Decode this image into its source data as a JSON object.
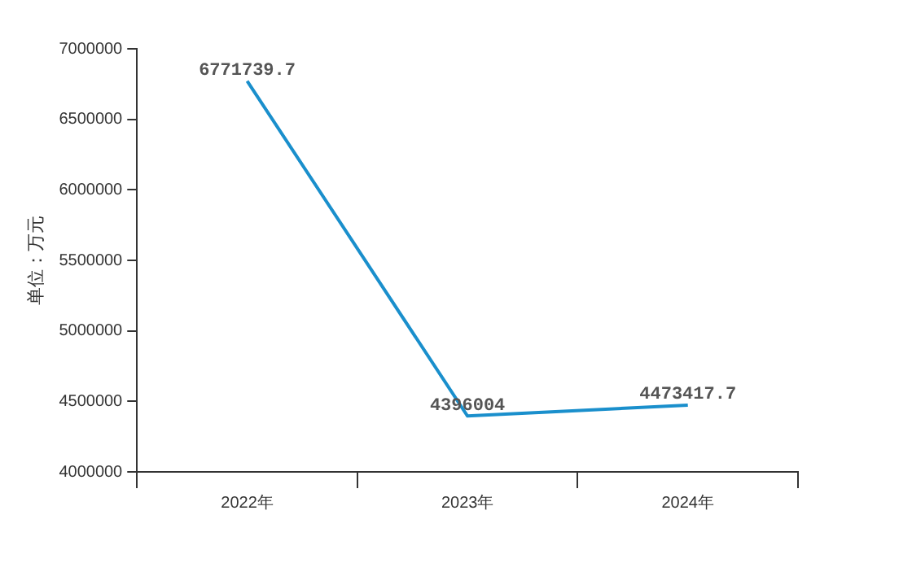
{
  "chart_data": {
    "type": "line",
    "ylabel": "单位：万元",
    "categories": [
      "2022年",
      "2023年",
      "2024年"
    ],
    "series": [
      {
        "color": "#1a8fcc",
        "values": [
          6771739.7,
          4396004,
          4473417.7
        ]
      }
    ],
    "ylim": [
      4000000,
      7000000
    ],
    "yticks": [
      4000000,
      4500000,
      5000000,
      5500000,
      6000000,
      6500000,
      7000000
    ],
    "grid": false,
    "legend": false,
    "marker": "none",
    "line_style": "solid",
    "data_labels": true
  }
}
